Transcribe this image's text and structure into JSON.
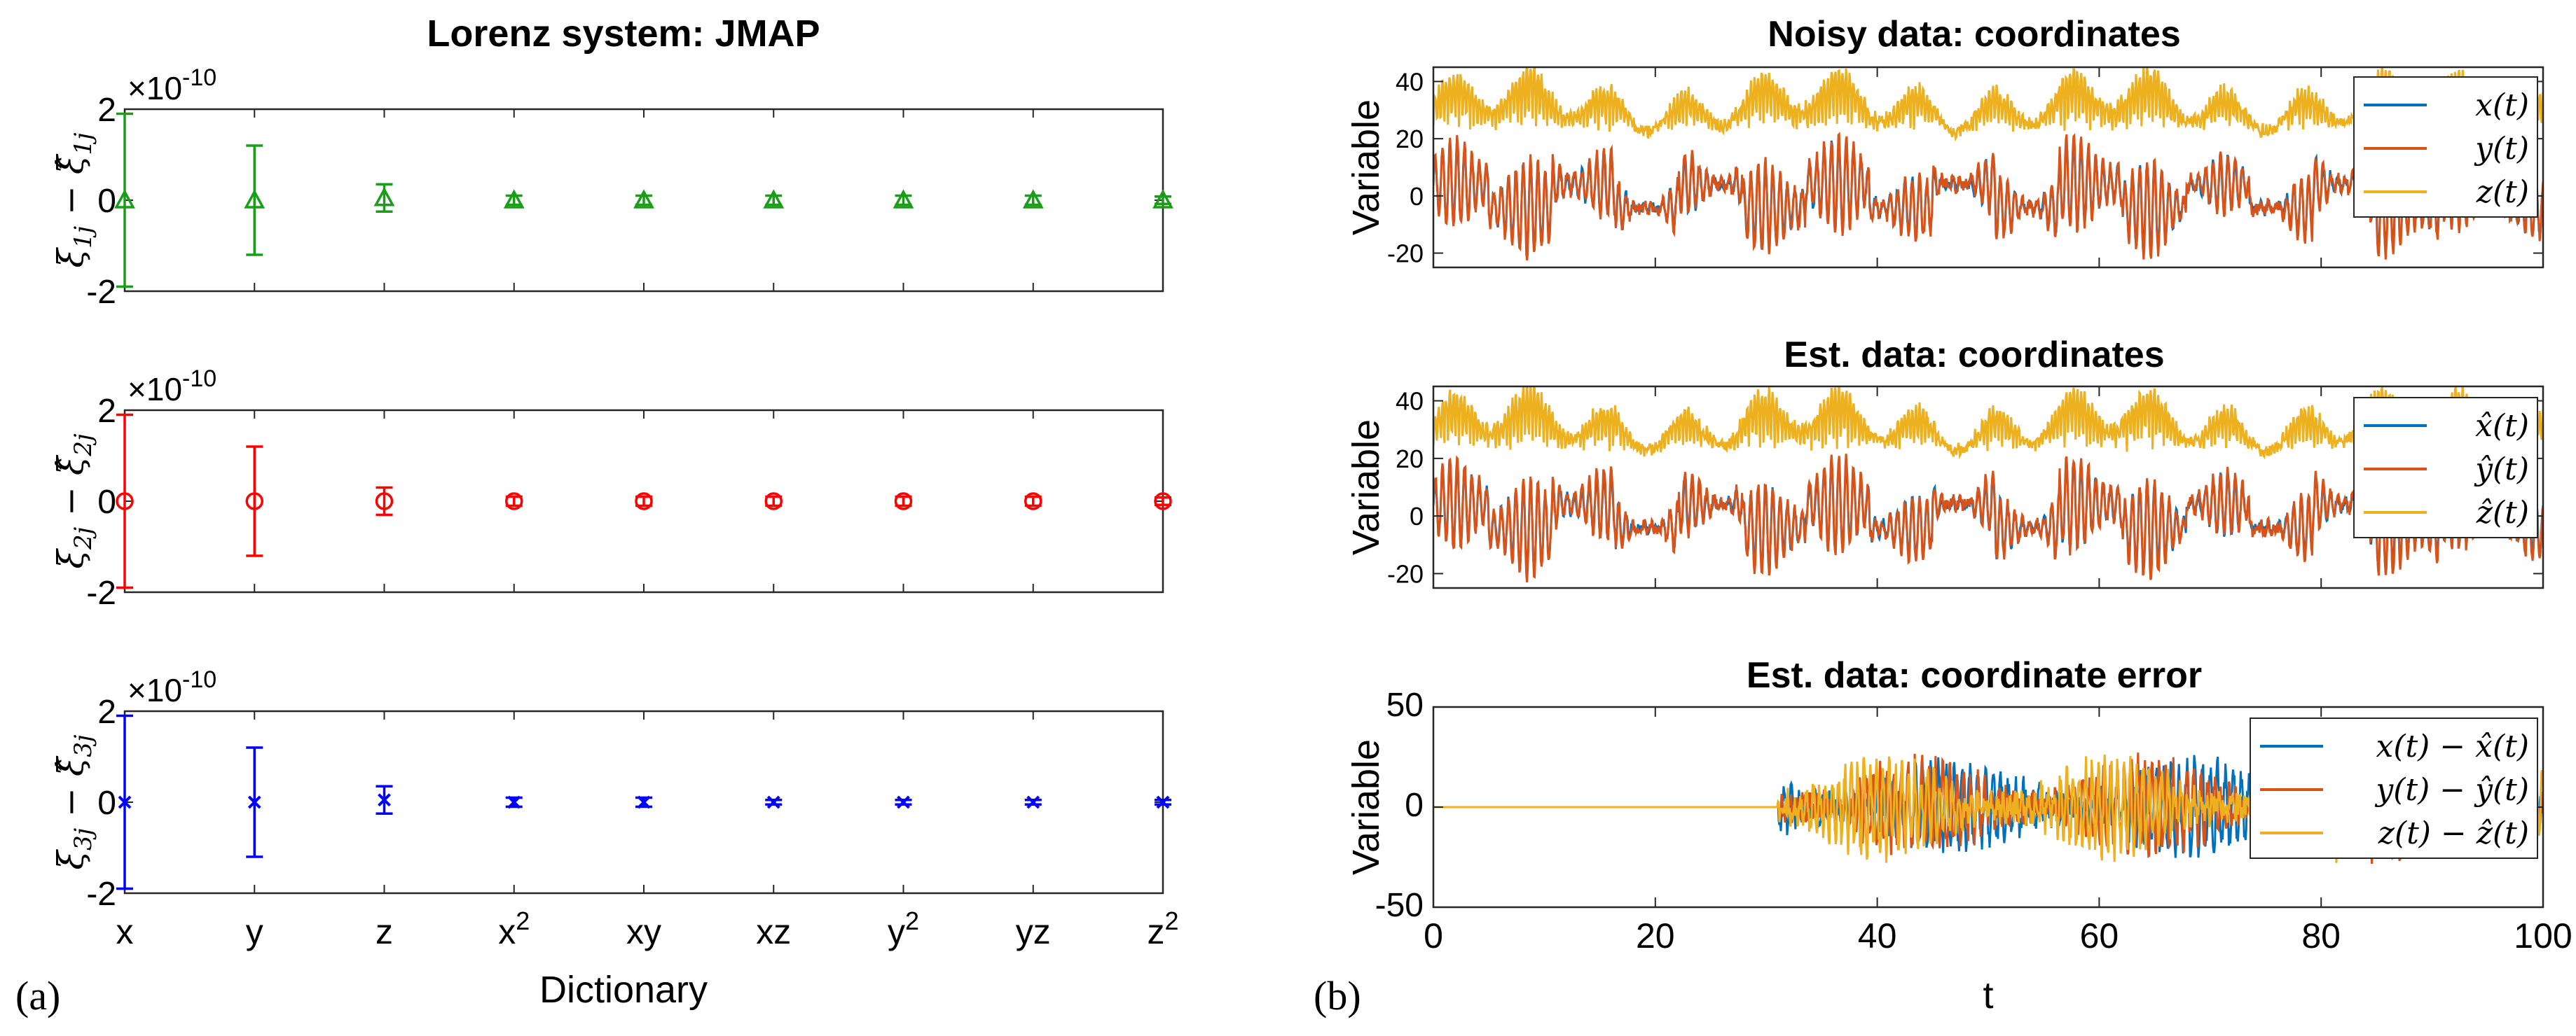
{
  "panel_a": {
    "label": "(a)",
    "title": "Lorenz system: JMAP",
    "xlabel": "Dictionary",
    "exponent_base": "×10",
    "exponent_power": "-10"
  },
  "panel_b": {
    "label": "(b)",
    "xlabel": "t"
  },
  "chart_data": [
    {
      "type": "scatter",
      "id": "a1",
      "title": "Lorenz system: JMAP",
      "ylabel": "ξ1j − ξ̂1j",
      "ylabel_main": "ξ",
      "ylabel_sub": "1j",
      "scale_note": "×10^-10",
      "categories": [
        "x",
        "y",
        "z",
        "x2",
        "xy",
        "xz",
        "y2",
        "yz",
        "z2"
      ],
      "tick_labels": [
        {
          "base": "x",
          "sup": ""
        },
        {
          "base": "y",
          "sup": ""
        },
        {
          "base": "z",
          "sup": ""
        },
        {
          "base": "x",
          "sup": "2"
        },
        {
          "base": "xy",
          "sup": ""
        },
        {
          "base": "xz",
          "sup": ""
        },
        {
          "base": "y",
          "sup": "2"
        },
        {
          "base": "yz",
          "sup": ""
        },
        {
          "base": "z",
          "sup": "2"
        }
      ],
      "y_ticks": [
        "2",
        "0",
        "-2"
      ],
      "ylim": [
        -2,
        2
      ],
      "values": [
        0,
        0,
        0.05,
        0,
        0,
        0,
        0,
        0,
        0
      ],
      "errors": [
        1.9,
        1.2,
        0.3,
        0.1,
        0.1,
        0.1,
        0.1,
        0.1,
        0.08
      ],
      "marker": "triangle",
      "color": "#1a9e1a"
    },
    {
      "type": "scatter",
      "id": "a2",
      "ylabel": "ξ2j − ξ̂2j",
      "ylabel_main": "ξ",
      "ylabel_sub": "2j",
      "scale_note": "×10^-10",
      "categories": [
        "x",
        "y",
        "z",
        "x2",
        "xy",
        "xz",
        "y2",
        "yz",
        "z2"
      ],
      "y_ticks": [
        "2",
        "0",
        "-2"
      ],
      "ylim": [
        -2,
        2
      ],
      "values": [
        0,
        0,
        0,
        0,
        0,
        0,
        0,
        0,
        0
      ],
      "errors": [
        1.9,
        1.2,
        0.3,
        0.1,
        0.1,
        0.1,
        0.1,
        0.1,
        0.08
      ],
      "marker": "circle",
      "color": "#ff0000"
    },
    {
      "type": "scatter",
      "id": "a3",
      "ylabel": "ξ3j − ξ̂3j",
      "ylabel_main": "ξ",
      "ylabel_sub": "3j",
      "scale_note": "×10^-10",
      "categories": [
        "x",
        "y",
        "z",
        "x2",
        "xy",
        "xz",
        "y2",
        "yz",
        "z2"
      ],
      "y_ticks": [
        "2",
        "0",
        "-2"
      ],
      "ylim": [
        -2,
        2
      ],
      "values": [
        0,
        0,
        0.05,
        0,
        0,
        0,
        0,
        0,
        0
      ],
      "errors": [
        1.9,
        1.2,
        0.3,
        0.1,
        0.1,
        0.05,
        0.05,
        0.05,
        0.05
      ],
      "marker": "x",
      "color": "#0000ff"
    },
    {
      "type": "line",
      "id": "b1",
      "title": "Noisy data: coordinates",
      "ylabel": "Variable",
      "xlim": [
        0,
        100
      ],
      "ylim": [
        -25,
        45
      ],
      "y_ticks": [
        "40",
        "20",
        "0",
        "-20"
      ],
      "x_ticks": [
        "0",
        "20",
        "40",
        "60",
        "80",
        "100"
      ],
      "legend_position": "top-right",
      "series": [
        {
          "name": "x(t)",
          "color": "#0072bd"
        },
        {
          "name": "y(t)",
          "color": "#d95319"
        },
        {
          "name": "z(t)",
          "color": "#edb120"
        }
      ]
    },
    {
      "type": "line",
      "id": "b2",
      "title": "Est. data: coordinates",
      "ylabel": "Variable",
      "xlim": [
        0,
        100
      ],
      "ylim": [
        -25,
        45
      ],
      "y_ticks": [
        "40",
        "20",
        "0",
        "-20"
      ],
      "x_ticks": [
        "0",
        "20",
        "40",
        "60",
        "80",
        "100"
      ],
      "legend_position": "top-right",
      "series": [
        {
          "name": "x̂(t)",
          "color": "#0072bd"
        },
        {
          "name": "ŷ(t)",
          "color": "#d95319"
        },
        {
          "name": "ẑ(t)",
          "color": "#edb120"
        }
      ]
    },
    {
      "type": "line",
      "id": "b3",
      "title": "Est. data: coordinate error",
      "ylabel": "Variable",
      "xlabel": "t",
      "xlim": [
        0,
        100
      ],
      "ylim": [
        -50,
        50
      ],
      "y_ticks": [
        "50",
        "0",
        "-50"
      ],
      "x_ticks": [
        "0",
        "20",
        "40",
        "60",
        "80",
        "100"
      ],
      "legend_position": "top-right",
      "series": [
        {
          "name": "x(t) − x̂(t)",
          "color": "#0072bd"
        },
        {
          "name": "y(t) − ŷ(t)",
          "color": "#d95319"
        },
        {
          "name": "z(t) − ẑ(t)",
          "color": "#edb120"
        }
      ]
    }
  ]
}
